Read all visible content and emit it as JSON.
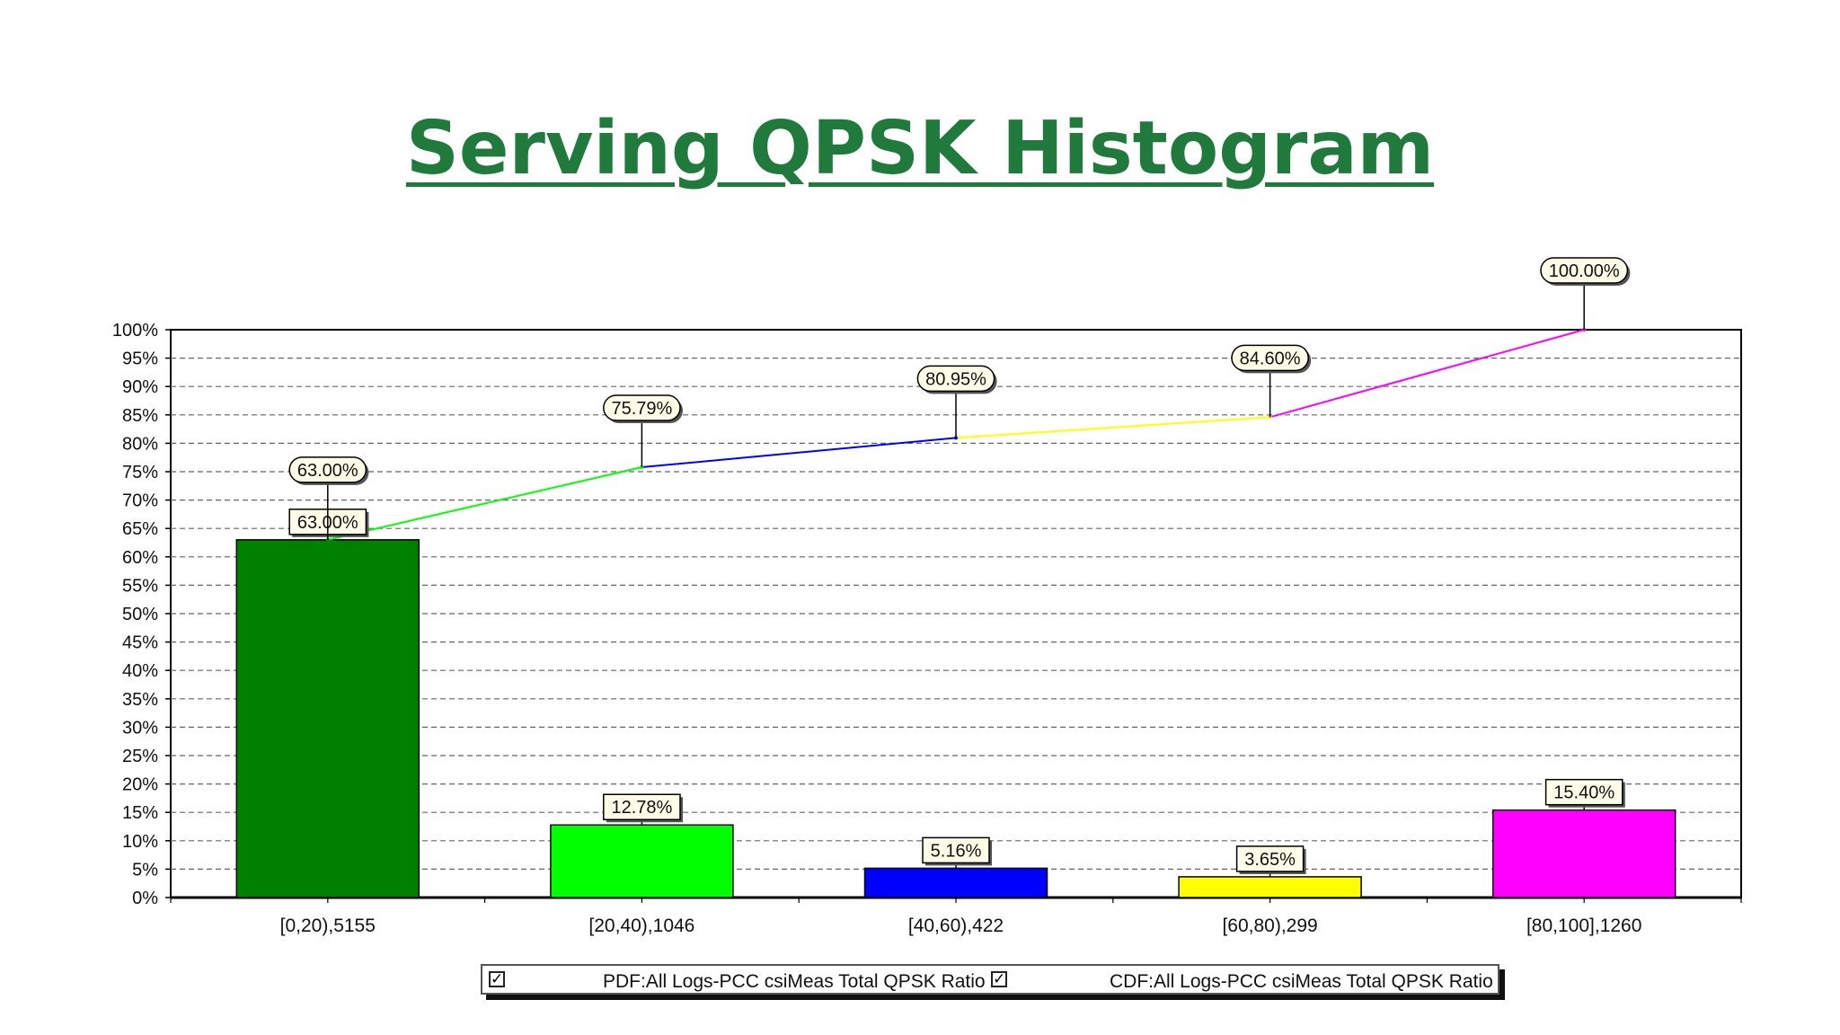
{
  "slide": {
    "title": "Serving QPSK Histogram"
  },
  "chart_data": {
    "type": "bar",
    "categories": [
      "[0,20),5155",
      "[20,40),1046",
      "[40,60),422",
      "[60,80),299",
      "[80,100],1260"
    ],
    "series": [
      {
        "name": "PDF:All Logs-PCC csiMeas Total QPSK Ratio",
        "type": "bar",
        "values": [
          63.0,
          12.78,
          5.16,
          3.65,
          15.4
        ]
      },
      {
        "name": "CDF:All Logs-PCC csiMeas Total QPSK Ratio",
        "type": "line",
        "values": [
          63.0,
          75.79,
          80.95,
          84.6,
          100.0
        ]
      }
    ],
    "pdf_labels": [
      "63.00%",
      "12.78%",
      "5.16%",
      "3.65%",
      "15.40%"
    ],
    "cdf_labels": [
      "63.00%",
      "75.79%",
      "80.95%",
      "84.60%",
      "100.00%"
    ],
    "colors": [
      "#008000",
      "#00ff00",
      "#0000ff",
      "#ffff00",
      "#ff00ff"
    ],
    "ylim": [
      0,
      100
    ],
    "yticks": [
      "0%",
      "5%",
      "10%",
      "15%",
      "20%",
      "25%",
      "30%",
      "35%",
      "40%",
      "45%",
      "50%",
      "55%",
      "60%",
      "65%",
      "70%",
      "75%",
      "80%",
      "85%",
      "90%",
      "95%",
      "100%"
    ],
    "grid": true,
    "legend_position": "bottom"
  },
  "legend": {
    "items": [
      {
        "label": "PDF:All Logs-PCC csiMeas Total QPSK Ratio",
        "checked": "✓"
      },
      {
        "label": "CDF:All Logs-PCC csiMeas Total QPSK Ratio",
        "checked": "✓"
      }
    ]
  }
}
